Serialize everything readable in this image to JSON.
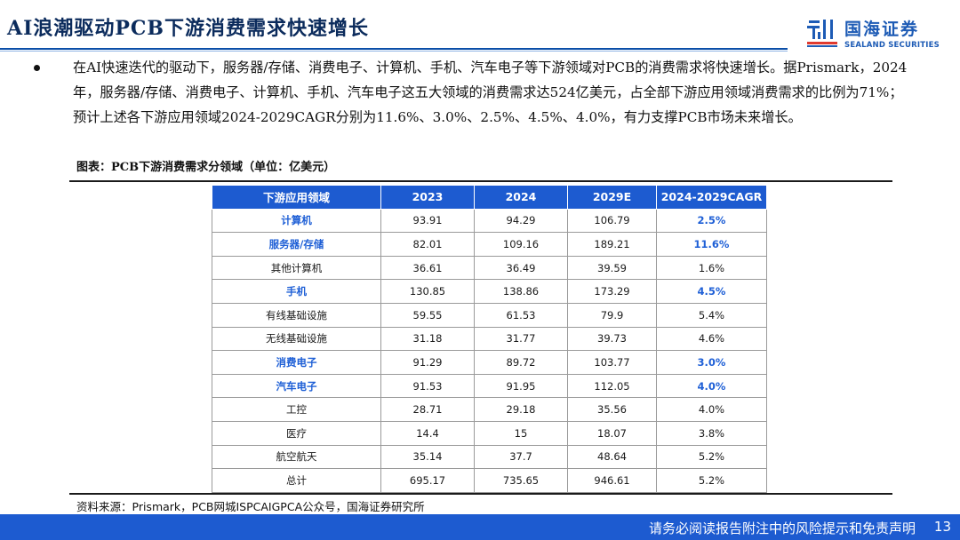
{
  "header": {
    "title": "AI浪潮驱动PCB下游消费需求快速增长"
  },
  "logo": {
    "name_cn": "国海证券",
    "name_en": "SEALAND SECURITIES"
  },
  "bullet": {
    "text": "在AI快速迭代的驱动下，服务器/存储、消费电子、计算机、手机、汽车电子等下游领域对PCB的消费需求将快速增长。据Prismark，2024年，服务器/存储、消费电子、计算机、手机、汽车电子这五大领域的消费需求达524亿美元，占全部下游应用领域消费需求的比例为71%；预计上述各下游应用领域2024-2029CAGR分别为11.6%、3.0%、2.5%、4.5%、4.0%，有力支撑PCB市场未来增长。"
  },
  "figure": {
    "caption": "图表：PCB下游消费需求分领域（单位：亿美元）"
  },
  "table": {
    "headers": [
      "下游应用领域",
      "2023",
      "2024",
      "2029E",
      "2024-2029CAGR"
    ],
    "rows": [
      {
        "label": "计算机",
        "v2023": "93.91",
        "v2024": "94.29",
        "v2029": "106.79",
        "cagr": "2.5%",
        "highlight": true
      },
      {
        "label": "服务器/存储",
        "v2023": "82.01",
        "v2024": "109.16",
        "v2029": "189.21",
        "cagr": "11.6%",
        "highlight": true
      },
      {
        "label": "其他计算机",
        "v2023": "36.61",
        "v2024": "36.49",
        "v2029": "39.59",
        "cagr": "1.6%",
        "highlight": false
      },
      {
        "label": "手机",
        "v2023": "130.85",
        "v2024": "138.86",
        "v2029": "173.29",
        "cagr": "4.5%",
        "highlight": true
      },
      {
        "label": "有线基础设施",
        "v2023": "59.55",
        "v2024": "61.53",
        "v2029": "79.9",
        "cagr": "5.4%",
        "highlight": false
      },
      {
        "label": "无线基础设施",
        "v2023": "31.18",
        "v2024": "31.77",
        "v2029": "39.73",
        "cagr": "4.6%",
        "highlight": false
      },
      {
        "label": "消费电子",
        "v2023": "91.29",
        "v2024": "89.72",
        "v2029": "103.77",
        "cagr": "3.0%",
        "highlight": true
      },
      {
        "label": "汽车电子",
        "v2023": "91.53",
        "v2024": "91.95",
        "v2029": "112.05",
        "cagr": "4.0%",
        "highlight": true
      },
      {
        "label": "工控",
        "v2023": "28.71",
        "v2024": "29.18",
        "v2029": "35.56",
        "cagr": "4.0%",
        "highlight": false
      },
      {
        "label": "医疗",
        "v2023": "14.4",
        "v2024": "15",
        "v2029": "18.07",
        "cagr": "3.8%",
        "highlight": false
      },
      {
        "label": "航空航天",
        "v2023": "35.14",
        "v2024": "37.7",
        "v2029": "48.64",
        "cagr": "5.2%",
        "highlight": false
      },
      {
        "label": "总计",
        "v2023": "695.17",
        "v2024": "735.65",
        "v2029": "946.61",
        "cagr": "5.2%",
        "highlight": false
      }
    ]
  },
  "source": {
    "text": "资料来源：Prismark，PCB网城ISPCAIGPCA公众号，国海证券研究所"
  },
  "footer": {
    "disclaimer": "请务必阅读报告附注中的风险提示和免责声明",
    "page": "13"
  },
  "colors": {
    "brand_blue": "#1d5bd0",
    "title_navy": "#0b2b5c",
    "highlight_blue": "#1e5fd6"
  }
}
